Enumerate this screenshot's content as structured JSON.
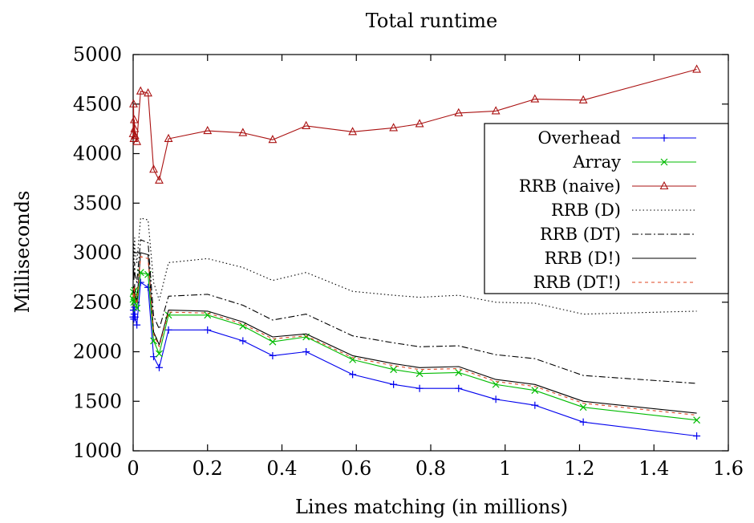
{
  "chart_data": {
    "type": "line",
    "title": "Total runtime",
    "xlabel": "Lines matching (in millions)",
    "ylabel": "Milliseconds",
    "xlim": [
      0,
      1.6
    ],
    "ylim": [
      1000,
      5000
    ],
    "xticks": [
      0,
      0.2,
      0.4,
      0.6,
      0.8,
      1.0,
      1.2,
      1.4,
      1.6
    ],
    "xtick_labels": [
      "0",
      "0.2",
      "0.4",
      "0.6",
      "0.8",
      "1",
      "1.2",
      "1.4",
      "1.6"
    ],
    "yticks": [
      1000,
      1500,
      2000,
      2500,
      3000,
      3500,
      4000,
      4500,
      5000
    ],
    "ytick_labels": [
      "1000",
      "1500",
      "2000",
      "2500",
      "3000",
      "3500",
      "4000",
      "4500",
      "5000"
    ],
    "grid": false,
    "legend_position": "top-right",
    "x": [
      0.0,
      0.001,
      0.002,
      0.003,
      0.004,
      0.005,
      0.01,
      0.02,
      0.04,
      0.055,
      0.07,
      0.095,
      0.2,
      0.295,
      0.375,
      0.465,
      0.59,
      0.7,
      0.77,
      0.875,
      0.975,
      1.08,
      1.21,
      1.515
    ],
    "series": [
      {
        "name": "Overhead",
        "color": "#0000ee",
        "dash": "",
        "marker": "plus",
        "values": [
          2350,
          2420,
          2330,
          2380,
          2450,
          2350,
          2270,
          2700,
          2650,
          1950,
          1840,
          2220,
          2220,
          2110,
          1960,
          2000,
          1770,
          1670,
          1630,
          1630,
          1520,
          1460,
          1290,
          1150
        ]
      },
      {
        "name": "Array",
        "color": "#00bb00",
        "dash": "",
        "marker": "x",
        "values": [
          2530,
          2600,
          2500,
          2560,
          2620,
          2520,
          2440,
          2800,
          2780,
          2110,
          1980,
          2370,
          2370,
          2260,
          2100,
          2150,
          1920,
          1820,
          1780,
          1790,
          1670,
          1610,
          1440,
          1310
        ]
      },
      {
        "name": "RRB (naive)",
        "color": "#aa1111",
        "dash": "",
        "marker": "triangle",
        "values": [
          4200,
          4500,
          4150,
          4340,
          4250,
          4180,
          4120,
          4630,
          4610,
          3840,
          3730,
          4150,
          4230,
          4210,
          4140,
          4280,
          4220,
          4260,
          4300,
          4410,
          4430,
          4550,
          4540,
          4850
        ]
      },
      {
        "name": "RRB (D)",
        "color": "#000000",
        "dash": "1.5,3",
        "marker": "",
        "values": [
          3000,
          3100,
          2900,
          3050,
          3150,
          3000,
          2900,
          3350,
          3330,
          2700,
          2520,
          2900,
          2940,
          2850,
          2720,
          2800,
          2610,
          2570,
          2550,
          2570,
          2500,
          2490,
          2380,
          2410
        ]
      },
      {
        "name": "RRB (DT)",
        "color": "#000000",
        "dash": "8,3,2,3",
        "marker": "",
        "values": [
          2800,
          2880,
          2720,
          2820,
          2900,
          2780,
          2700,
          3130,
          3100,
          2360,
          2230,
          2560,
          2580,
          2470,
          2320,
          2380,
          2160,
          2090,
          2050,
          2060,
          1970,
          1930,
          1760,
          1680
        ]
      },
      {
        "name": "RRB (D!)",
        "color": "#000000",
        "dash": "",
        "marker": "",
        "values": [
          2580,
          2660,
          2550,
          2620,
          2680,
          2570,
          2500,
          3000,
          2980,
          2200,
          2070,
          2420,
          2410,
          2300,
          2150,
          2180,
          1960,
          1880,
          1840,
          1850,
          1720,
          1670,
          1500,
          1380
        ]
      },
      {
        "name": "RRB (DT!)",
        "color": "#dd4422",
        "dash": "4,4",
        "marker": "",
        "values": [
          2560,
          2640,
          2530,
          2600,
          2660,
          2550,
          2480,
          2960,
          2940,
          2180,
          2050,
          2400,
          2390,
          2280,
          2130,
          2160,
          1940,
          1860,
          1820,
          1830,
          1700,
          1650,
          1480,
          1360
        ]
      }
    ]
  }
}
